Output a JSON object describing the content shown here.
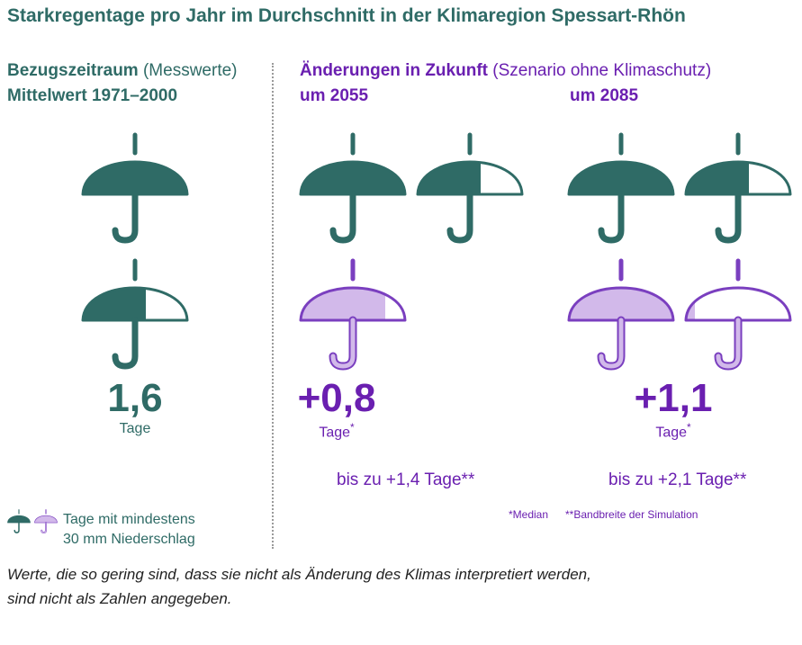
{
  "title": "Starkregentage pro Jahr im Durchschnitt in der Klimaregion Spessart-Rhön",
  "reference": {
    "heading_bold": "Bezugszeitraum",
    "heading_normal": "(Messwerte)",
    "subheading": "Mittelwert 1971–2000",
    "value": "1,6",
    "unit": "Tage"
  },
  "future": {
    "heading_bold": "Änderungen in Zukunft",
    "heading_normal": "(Szenario ohne Klimaschutz)",
    "period_2055": {
      "label": "um 2055",
      "value": "+0,8",
      "unit": "Tage",
      "unit_mark": "*",
      "range": "bis zu +1,4 Tage**"
    },
    "period_2085": {
      "label": "um 2085",
      "value": "+1,1",
      "unit": "Tage",
      "unit_mark": "*",
      "range": "bis zu +2,1 Tage**"
    }
  },
  "notes": {
    "median": "*Median",
    "range": "**Bandbreite der Simulation"
  },
  "legend": {
    "line1": "Tage mit mindestens",
    "line2": "30 mm Niederschlag"
  },
  "footer": {
    "line1": "Werte, die so gering sind, dass sie nicht als Änderung des Klimas interpretiert werden,",
    "line2": "sind nicht als Zahlen angegeben."
  },
  "colors": {
    "teal": "#2f6b66",
    "lilac": "#d2b9ea",
    "purple": "#6a1fb0",
    "purple_outline": "#7a3fbf"
  },
  "chart_data": {
    "type": "pictogram",
    "title": "Starkregentage pro Jahr im Durchschnitt in der Klimaregion Spessart-Rhön",
    "unit": "Tage",
    "series": [
      {
        "name": "Bezugszeitraum Mittelwert 1971–2000",
        "base_days": 1.6,
        "added_days": 0.0
      },
      {
        "name": "um 2055",
        "base_days": 1.6,
        "added_days": 0.8,
        "upper_range_days": 1.4
      },
      {
        "name": "um 2085",
        "base_days": 1.6,
        "added_days": 1.1,
        "upper_range_days": 2.1
      }
    ]
  }
}
